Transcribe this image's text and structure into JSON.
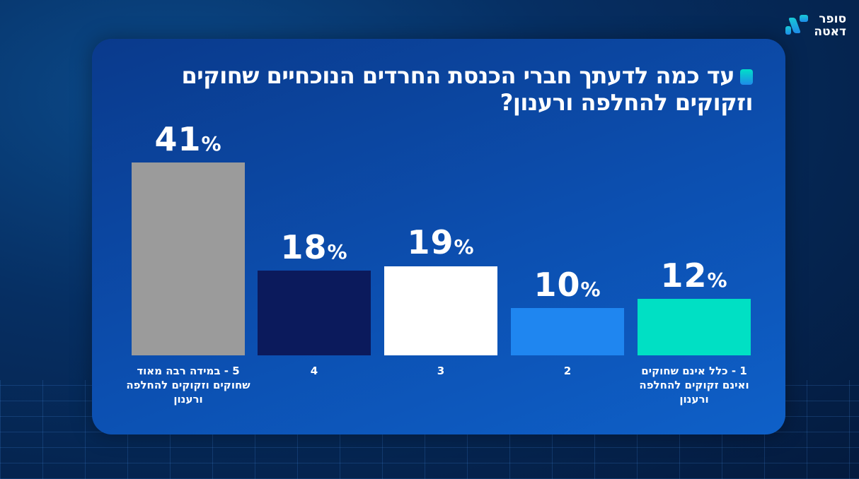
{
  "brand": {
    "logo_line1": "סופר",
    "logo_line2": "דאטה"
  },
  "chart_data": {
    "type": "bar",
    "title": "עד כמה לדעתך חברי הכנסת החרדים הנוכחיים שחוקים וזקוקים להחלפה ורענון?",
    "categories": [
      "5 - במידה רבה מאוד שחוקים וזקוקים להחלפה ורענון",
      "4",
      "3",
      "2",
      "1 - כלל אינם שחוקים ואינם זקוקים להחלפה ורענון"
    ],
    "values": [
      41,
      18,
      19,
      10,
      12
    ],
    "labels": [
      "41",
      "18",
      "19",
      "10",
      "12"
    ],
    "unit": "%",
    "colors": [
      "#9b9b9b",
      "#0b1a5c",
      "#ffffff",
      "#1f86f0",
      "#00e0c4"
    ],
    "xlabel": "",
    "ylabel": "",
    "ylim": [
      0,
      41
    ],
    "grid": false
  }
}
